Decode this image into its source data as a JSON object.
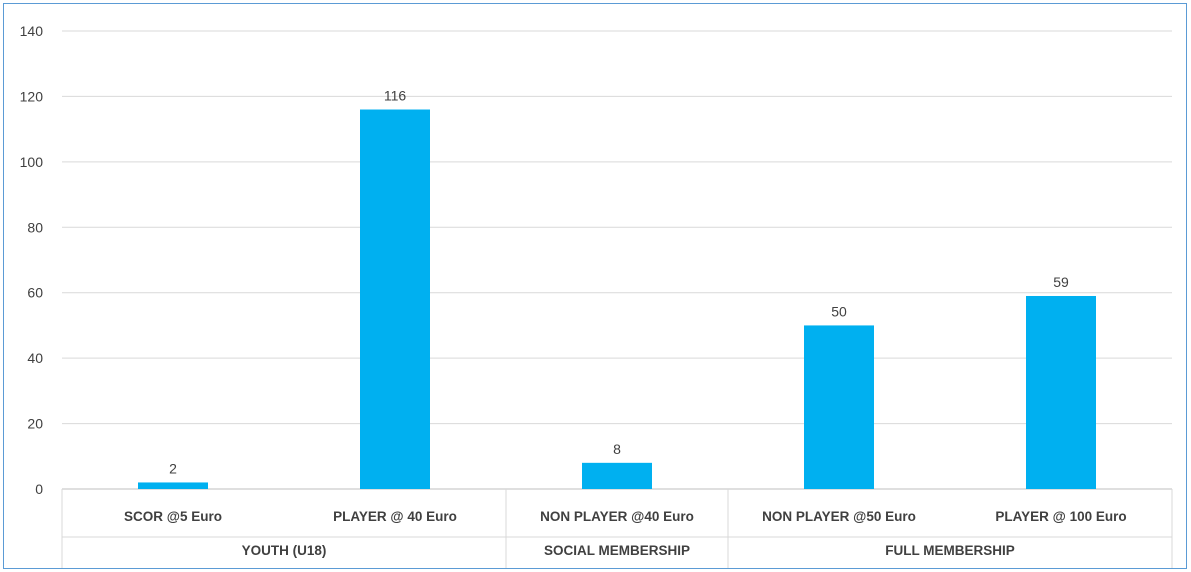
{
  "chart_data": {
    "type": "bar",
    "categories": [
      "SCOR @5 Euro",
      "PLAYER @ 40 Euro",
      "NON PLAYER @40 Euro",
      "NON PLAYER @50 Euro",
      "PLAYER @ 100 Euro"
    ],
    "groups": [
      {
        "label": "YOUTH (U18)",
        "members": [
          0,
          1
        ]
      },
      {
        "label": "SOCIAL MEMBERSHIP",
        "members": [
          2
        ]
      },
      {
        "label": "FULL MEMBERSHIP",
        "members": [
          3,
          4
        ]
      }
    ],
    "values": [
      2,
      116,
      8,
      50,
      59
    ],
    "ylim": [
      0,
      140
    ],
    "yticks": [
      0,
      20,
      40,
      60,
      80,
      100,
      120,
      140
    ],
    "grid": true,
    "data_labels": true,
    "bar_color": "#00b0f0",
    "title": "",
    "xlabel": "",
    "ylabel": ""
  }
}
